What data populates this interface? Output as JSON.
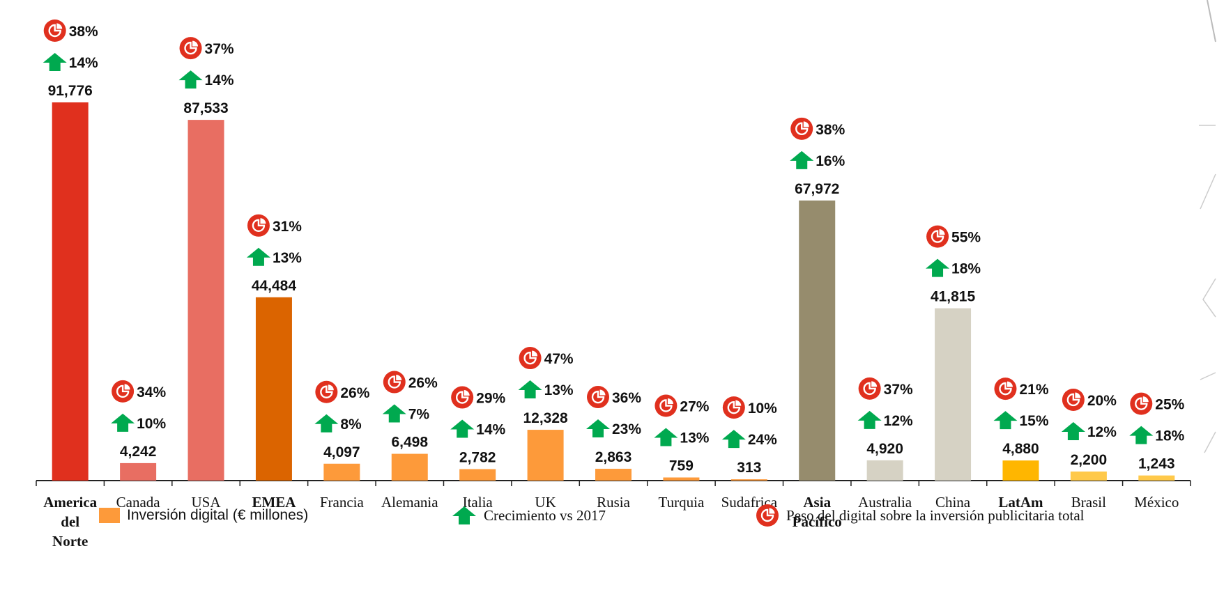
{
  "chart_data": {
    "type": "bar",
    "categories": [
      {
        "label": "America del Norte",
        "lines": [
          "America",
          "del",
          "Norte"
        ],
        "bold": true
      },
      {
        "label": "Canada",
        "lines": [
          "Canada"
        ],
        "bold": false
      },
      {
        "label": "USA",
        "lines": [
          "USA"
        ],
        "bold": false
      },
      {
        "label": "EMEA",
        "lines": [
          "EMEA"
        ],
        "bold": true
      },
      {
        "label": "Francia",
        "lines": [
          "Francia"
        ],
        "bold": false
      },
      {
        "label": "Alemania",
        "lines": [
          "Alemania"
        ],
        "bold": false
      },
      {
        "label": "Italia",
        "lines": [
          "Italia"
        ],
        "bold": false
      },
      {
        "label": "UK",
        "lines": [
          "UK"
        ],
        "bold": false
      },
      {
        "label": "Rusia",
        "lines": [
          "Rusia"
        ],
        "bold": false
      },
      {
        "label": "Turquia",
        "lines": [
          "Turquia"
        ],
        "bold": false
      },
      {
        "label": "Sudafrica",
        "lines": [
          "Sudafrica"
        ],
        "bold": false
      },
      {
        "label": "Asia Pacífico",
        "lines": [
          "Asia",
          "Pacífico"
        ],
        "bold": true
      },
      {
        "label": "Australia",
        "lines": [
          "Australia"
        ],
        "bold": false
      },
      {
        "label": "China",
        "lines": [
          "China"
        ],
        "bold": false
      },
      {
        "label": "LatAm",
        "lines": [
          "LatAm"
        ],
        "bold": true
      },
      {
        "label": "Brasil",
        "lines": [
          "Brasil"
        ],
        "bold": false
      },
      {
        "label": "México",
        "lines": [
          "México"
        ],
        "bold": false
      }
    ],
    "values": [
      91776,
      4242,
      87533,
      44484,
      4097,
      6498,
      2782,
      12328,
      2863,
      759,
      313,
      67972,
      4920,
      41815,
      4880,
      2200,
      1243
    ],
    "value_labels": [
      "91,776",
      "4,242",
      "87,533",
      "44,484",
      "4,097",
      "6,498",
      "2,782",
      "12,328",
      "2,863",
      "759",
      "313",
      "67,972",
      "4,920",
      "41,815",
      "4,880",
      "2,200",
      "1,243"
    ],
    "growth_vs_2017": [
      "14%",
      "10%",
      "14%",
      "13%",
      "8%",
      "7%",
      "14%",
      "13%",
      "23%",
      "13%",
      "24%",
      "16%",
      "12%",
      "18%",
      "15%",
      "12%",
      "18%"
    ],
    "digital_share": [
      "38%",
      "34%",
      "37%",
      "31%",
      "26%",
      "26%",
      "29%",
      "47%",
      "36%",
      "27%",
      "10%",
      "38%",
      "37%",
      "55%",
      "21%",
      "20%",
      "25%"
    ],
    "bar_colors": [
      "#E0301E",
      "#E86E62",
      "#E86E62",
      "#DB6400",
      "#FD9A3A",
      "#FD9A3A",
      "#FD9A3A",
      "#FD9A3A",
      "#FD9A3A",
      "#FD9A3A",
      "#FD9A3A",
      "#968C6D",
      "#D6D2C4",
      "#D6D2C4",
      "#FFB600",
      "#FFC94A",
      "#FFC94A"
    ],
    "ylim": [
      0,
      100000
    ],
    "legend_position": "bottom"
  },
  "legend": {
    "investment_label": "Inversión digital (€ millones)",
    "investment_color": "#FD9A3A",
    "growth_label": "Crecimiento vs 2017",
    "growth_icon": "green-up-arrow-icon",
    "growth_color": "#00A94F",
    "share_label": "Peso del digital sobre la inversión publicitaria total",
    "share_icon": "red-pie-icon",
    "share_color": "#E0301E"
  }
}
